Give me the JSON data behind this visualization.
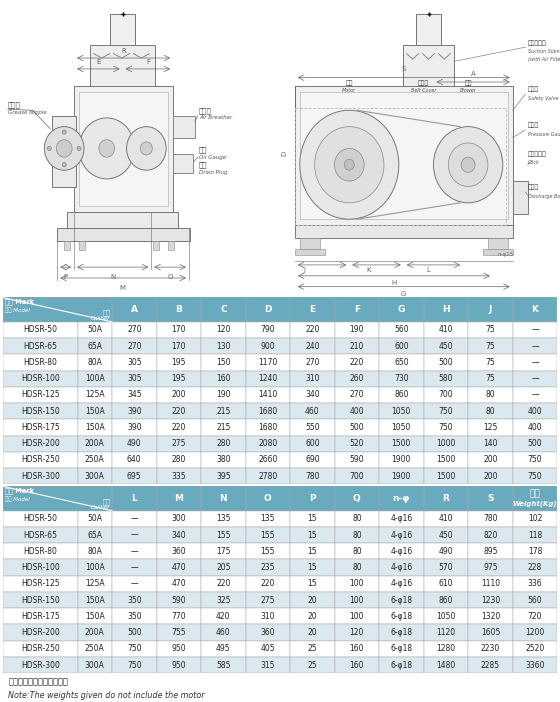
{
  "table1_cols": [
    "A",
    "B",
    "C",
    "D",
    "E",
    "F",
    "G",
    "H",
    "J",
    "K"
  ],
  "table1_data": [
    [
      "HDSR-50",
      "50A",
      "270",
      "170",
      "120",
      "790",
      "220",
      "190",
      "560",
      "410",
      "75",
      "—"
    ],
    [
      "HDSR-65",
      "65A",
      "270",
      "170",
      "130",
      "900",
      "240",
      "210",
      "600",
      "450",
      "75",
      "—"
    ],
    [
      "HDSR-80",
      "80A",
      "305",
      "195",
      "150",
      "1170",
      "270",
      "220",
      "650",
      "500",
      "75",
      "—"
    ],
    [
      "HDSR-100",
      "100A",
      "305",
      "195",
      "160",
      "1240",
      "310",
      "260",
      "730",
      "580",
      "75",
      "—"
    ],
    [
      "HDSR-125",
      "125A",
      "345",
      "200",
      "190",
      "1410",
      "340",
      "270",
      "860",
      "700",
      "80",
      "—"
    ],
    [
      "HDSR-150",
      "150A",
      "390",
      "220",
      "215",
      "1680",
      "460",
      "400",
      "1050",
      "750",
      "80",
      "400"
    ],
    [
      "HDSR-175",
      "150A",
      "390",
      "220",
      "215",
      "1680",
      "550",
      "500",
      "1050",
      "750",
      "125",
      "400"
    ],
    [
      "HDSR-200",
      "200A",
      "490",
      "275",
      "280",
      "2080",
      "600",
      "520",
      "1500",
      "1000",
      "140",
      "500"
    ],
    [
      "HDSR-250",
      "250A",
      "640",
      "280",
      "380",
      "2660",
      "690",
      "590",
      "1900",
      "1500",
      "200",
      "750"
    ],
    [
      "HDSR-300",
      "300A",
      "695",
      "335",
      "395",
      "2780",
      "780",
      "700",
      "1900",
      "1500",
      "200",
      "750"
    ]
  ],
  "table2_cols": [
    "L",
    "M",
    "N",
    "O",
    "P",
    "Q",
    "n-φ",
    "R",
    "S",
    "重量\nWeight(Kg)"
  ],
  "table2_data": [
    [
      "HDSR-50",
      "50A",
      "—",
      "300",
      "135",
      "135",
      "15",
      "80",
      "4-φ16",
      "410",
      "780",
      "102"
    ],
    [
      "HDSR-65",
      "65A",
      "—",
      "340",
      "155",
      "155",
      "15",
      "80",
      "4-φ16",
      "450",
      "820",
      "118"
    ],
    [
      "HDSR-80",
      "80A",
      "—",
      "360",
      "175",
      "155",
      "15",
      "80",
      "4-φ16",
      "490",
      "895",
      "178"
    ],
    [
      "HDSR-100",
      "100A",
      "—",
      "470",
      "205",
      "235",
      "15",
      "80",
      "4-φ16",
      "570",
      "975",
      "228"
    ],
    [
      "HDSR-125",
      "125A",
      "—",
      "470",
      "220",
      "220",
      "15",
      "100",
      "4-φ16",
      "610",
      "1110",
      "336"
    ],
    [
      "HDSR-150",
      "150A",
      "350",
      "590",
      "325",
      "275",
      "20",
      "100",
      "6-φ18",
      "860",
      "1230",
      "560"
    ],
    [
      "HDSR-175",
      "150A",
      "350",
      "770",
      "420",
      "310",
      "20",
      "100",
      "6-φ18",
      "1050",
      "1320",
      "720"
    ],
    [
      "HDSR-200",
      "200A",
      "500",
      "755",
      "460",
      "360",
      "20",
      "120",
      "6-φ18",
      "1120",
      "1605",
      "1200"
    ],
    [
      "HDSR-250",
      "250A",
      "750",
      "950",
      "495",
      "405",
      "25",
      "160",
      "6-φ18",
      "1280",
      "2230",
      "2520"
    ],
    [
      "HDSR-300",
      "300A",
      "750",
      "950",
      "585",
      "315",
      "25",
      "160",
      "6-φ18",
      "1480",
      "2285",
      "3360"
    ]
  ],
  "note_cn": "注：重量中不包括电机重量",
  "note_en": "Note:The weights given do not include the motor",
  "header_bg": "#6aaabf",
  "alt_row_bg": "#dce8ef",
  "white_row_bg": "#ffffff"
}
